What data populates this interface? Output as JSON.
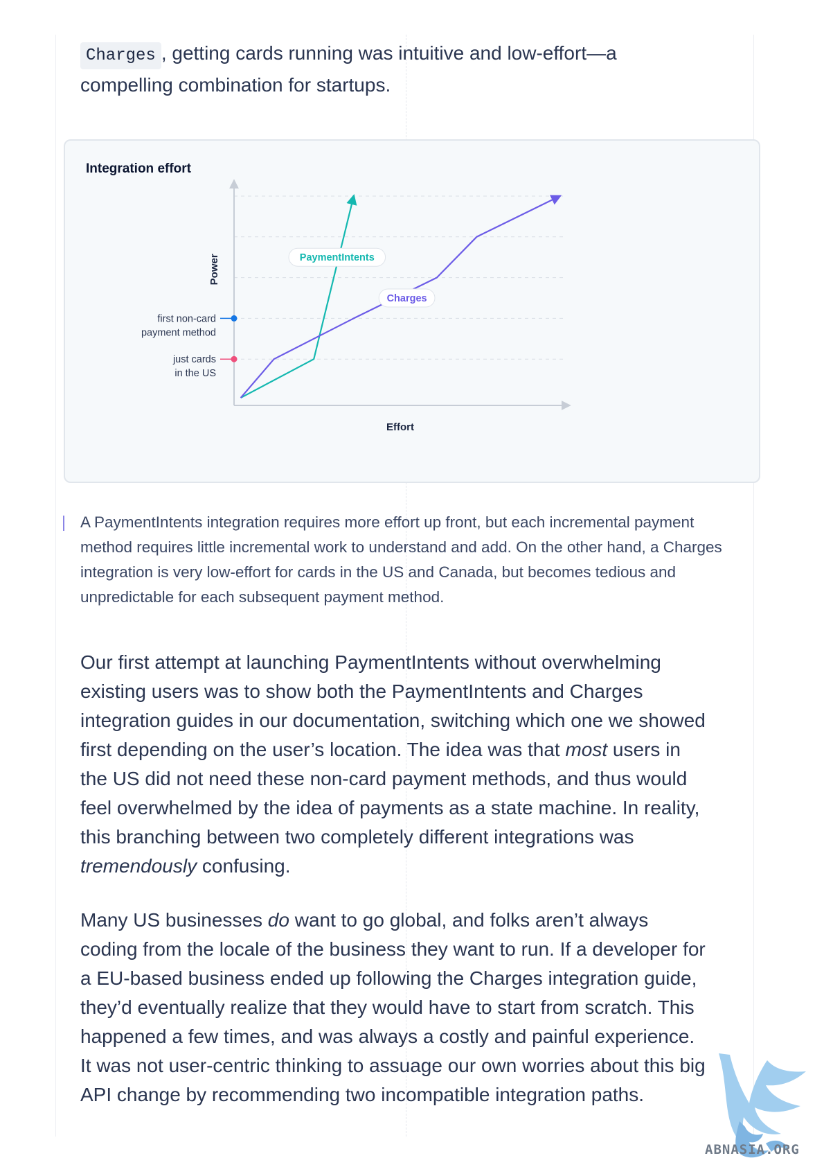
{
  "intro": {
    "code": "Charges",
    "text_line1": ", getting cards running was intuitive and low-effort—a",
    "text_line2": "compelling combination for startups."
  },
  "chart_data": {
    "type": "line",
    "title": "Integration effort",
    "xlabel": "Effort",
    "ylabel": "Power",
    "xlim": [
      0,
      100
    ],
    "ylim": [
      0,
      100
    ],
    "grid": true,
    "annotations_y": [
      {
        "label_line1": "first non-card",
        "label_line2": "payment method",
        "y": 40,
        "color": "#1677e5"
      },
      {
        "label_line1": "just cards",
        "label_line2": "in the US",
        "y": 20,
        "color": "#ef4f7c"
      }
    ],
    "series": [
      {
        "name": "PaymentIntents",
        "color": "#14b8b0",
        "points": [
          [
            2,
            1
          ],
          [
            24,
            20
          ],
          [
            36,
            100
          ]
        ]
      },
      {
        "name": "Charges",
        "color": "#6c5ce7",
        "points": [
          [
            2,
            1
          ],
          [
            12,
            20
          ],
          [
            36,
            40
          ],
          [
            61,
            60
          ],
          [
            73,
            80
          ],
          [
            98,
            100
          ]
        ]
      }
    ],
    "series_label_pos": [
      {
        "x": 31,
        "y": 70
      },
      {
        "x": 52,
        "y": 50
      }
    ]
  },
  "caption": "A PaymentIntents integration requires more effort up front, but each incremental payment method requires little incremental work to understand and add. On the other hand, a Charges integration is very low-effort for cards in the US and Canada, but becomes tedious and unpredictable for each subsequent payment method.",
  "para1": {
    "before_most": "Our first attempt at launching PaymentIntents without overwhelming existing users was to show both the PaymentIntents and Charges integration guides in our documentation, switching which one we showed first depending on the user’s location. The idea was that ",
    "most": "most",
    "after_most": " users in the US did not need these non-card payment methods, and thus would feel overwhelmed by the idea of payments as a state machine. In reality, this branching between two completely different integrations was ",
    "tremendously": "tremendously",
    "end": " confusing."
  },
  "para2": {
    "before_do": "Many US businesses ",
    "do": "do",
    "after_do": " want to go global, and folks aren’t always coding from the locale of the business they want to run. If a developer for a EU-based business ended up following the Charges integration guide, they’d eventually realize that they would have to start from scratch. This happened a few times, and was always a costly and painful experience. It was not user-centric thinking to assuage our own worries about this big API change by recommending two incompatible integration paths."
  },
  "watermark": {
    "text": "ABNASIA.ORG",
    "color": "#8ec2ea"
  }
}
